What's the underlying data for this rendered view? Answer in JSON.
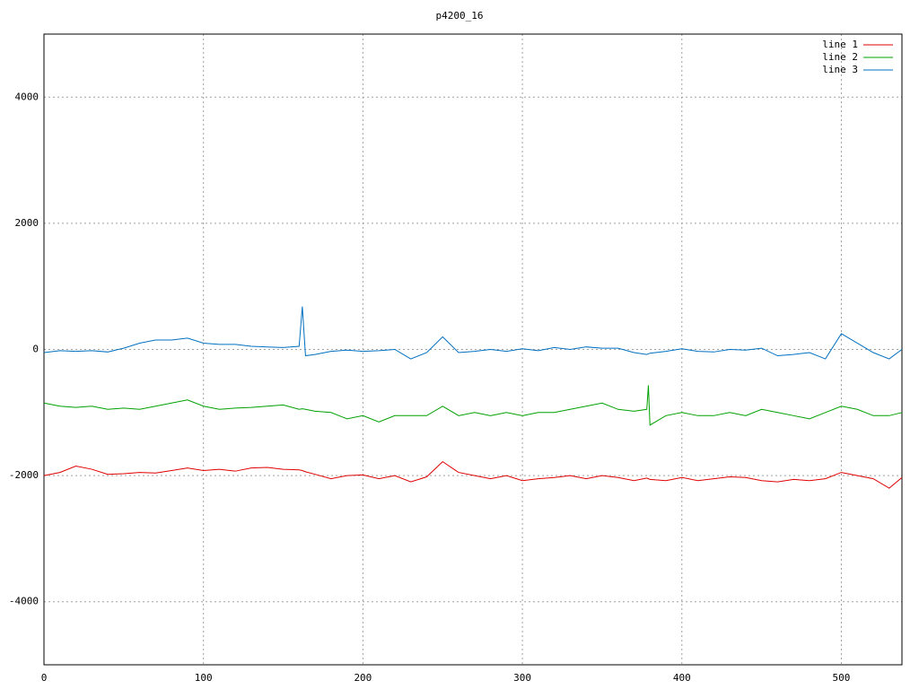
{
  "chart_data": {
    "type": "line",
    "title": "p4200_16",
    "x": [
      0,
      10,
      20,
      30,
      40,
      50,
      60,
      70,
      80,
      90,
      100,
      110,
      120,
      130,
      140,
      150,
      160,
      162,
      164,
      170,
      180,
      190,
      200,
      210,
      220,
      230,
      240,
      250,
      260,
      270,
      280,
      290,
      300,
      310,
      320,
      330,
      340,
      350,
      360,
      370,
      378,
      379,
      380,
      390,
      400,
      410,
      420,
      430,
      440,
      450,
      460,
      470,
      480,
      490,
      500,
      510,
      520,
      530,
      538
    ],
    "series": [
      {
        "name": "line 1",
        "color": "#e00000",
        "values": [
          -2000,
          -1950,
          -1850,
          -1900,
          -1980,
          -1970,
          -1950,
          -1960,
          -1920,
          -1880,
          -1920,
          -1900,
          -1930,
          -1880,
          -1870,
          -1900,
          -1910,
          -1920,
          -1940,
          -1980,
          -2050,
          -2000,
          -1990,
          -2050,
          -2000,
          -2100,
          -2020,
          -1780,
          -1950,
          -2000,
          -2050,
          -2000,
          -2080,
          -2050,
          -2030,
          -2000,
          -2050,
          -2000,
          -2030,
          -2080,
          -2040,
          -2050,
          -2060,
          -2080,
          -2030,
          -2080,
          -2050,
          -2020,
          -2030,
          -2080,
          -2100,
          -2060,
          -2080,
          -2050,
          -1950,
          -2000,
          -2050,
          -2200,
          -2030
        ]
      },
      {
        "name": "line 2",
        "color": "#00a000",
        "values": [
          -850,
          -900,
          -920,
          -900,
          -950,
          -930,
          -950,
          -900,
          -850,
          -800,
          -900,
          -950,
          -930,
          -920,
          -900,
          -880,
          -950,
          -940,
          -950,
          -980,
          -1000,
          -1100,
          -1050,
          -1150,
          -1050,
          -1050,
          -1050,
          -900,
          -1050,
          -1000,
          -1050,
          -1000,
          -1050,
          -1000,
          -1000,
          -950,
          -900,
          -850,
          -950,
          -980,
          -950,
          -570,
          -1200,
          -1050,
          -1000,
          -1050,
          -1050,
          -1000,
          -1050,
          -950,
          -1000,
          -1050,
          -1100,
          -1000,
          -900,
          -950,
          -1050,
          -1050,
          -1000
        ]
      },
      {
        "name": "line 3",
        "color": "#0070c0",
        "values": [
          -50,
          -20,
          -30,
          -20,
          -40,
          20,
          100,
          150,
          150,
          180,
          100,
          80,
          80,
          50,
          40,
          30,
          50,
          680,
          -100,
          -80,
          -30,
          -10,
          -30,
          -20,
          0,
          -150,
          -50,
          200,
          -50,
          -30,
          0,
          -30,
          10,
          -20,
          30,
          0,
          40,
          20,
          20,
          -50,
          -80,
          -70,
          -60,
          -30,
          10,
          -30,
          -40,
          0,
          -10,
          20,
          -100,
          -80,
          -50,
          -150,
          250,
          100,
          -50,
          -150,
          0
        ]
      }
    ],
    "xlim": [
      0,
      538
    ],
    "ylim": [
      -5000,
      5000
    ],
    "xticks": [
      0,
      100,
      200,
      300,
      400,
      500
    ],
    "yticks": [
      -4000,
      -2000,
      0,
      2000,
      4000
    ],
    "grid": true,
    "legend": "top-right"
  }
}
